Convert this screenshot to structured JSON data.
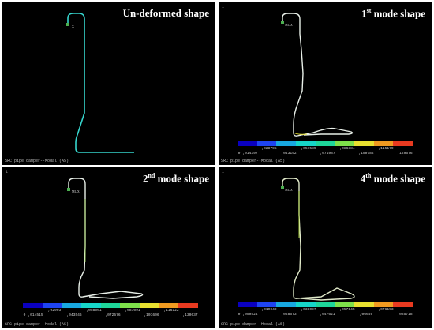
{
  "colors": [
    "#0a00c0",
    "#1e44f2",
    "#18a8e0",
    "#16d6c8",
    "#1ed69a",
    "#7ee04a",
    "#e8e030",
    "#f09a20",
    "#e83a20"
  ],
  "panels": [
    {
      "number": "",
      "title": "Un-deformed shape",
      "footer": "SRC pipe damper--Modal (A5)",
      "legend_top": [],
      "legend_bottom": []
    },
    {
      "number": "1",
      "title_main": "1",
      "title_sup": "st",
      "title_rest": " mode shape",
      "footer": "SRC pipe damper--Modal (A5)",
      "legend_top": [
        ",028795",
        ",057589",
        ",086384",
        ",115179"
      ],
      "legend_bottom": [
        "0",
        ",014397",
        ",043192",
        ",071987",
        ",100782",
        ",129576"
      ]
    },
    {
      "number": "1",
      "title_main": "2",
      "title_sup": "nd",
      "title_rest": " mode shape",
      "footer": "SRC pipe damper--Modal (A5)",
      "legend_top": [
        ",02903",
        ",058061",
        ",087091",
        ",116122"
      ],
      "legend_bottom": [
        "0",
        ",014515",
        ",043546",
        ",072576",
        ",101606",
        ",130637"
      ]
    },
    {
      "number": "1",
      "title_main": "4",
      "title_sup": "th",
      "title_rest": " mode shape",
      "footer": "SRC pipe damper--Modal (A5)",
      "legend_top": [
        ",019049",
        ",038097",
        ",057145",
        ",076193"
      ],
      "legend_bottom": [
        "0",
        ",009524",
        ",028573",
        ",047621",
        ",06669",
        ",085718"
      ]
    }
  ]
}
